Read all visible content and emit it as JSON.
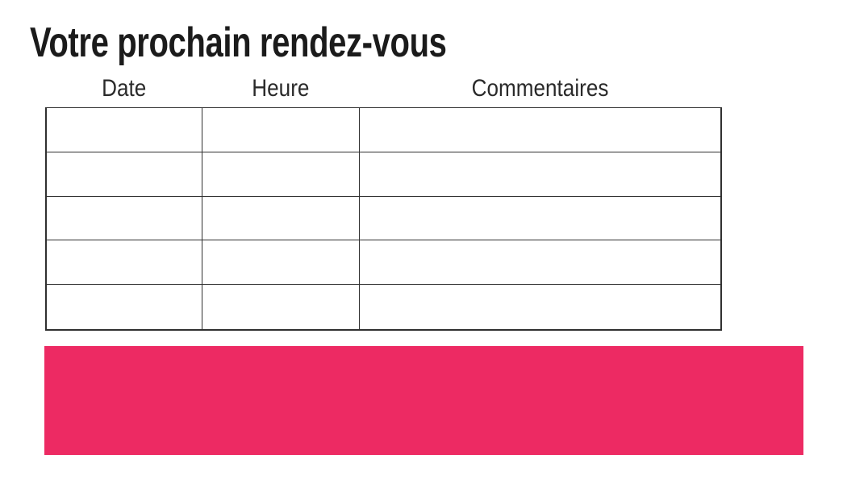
{
  "page": {
    "title": "Votre prochain rendez-vous"
  },
  "table": {
    "headers": [
      "Date",
      "Heure",
      "Commentaires"
    ],
    "rows": [
      [
        "",
        "",
        ""
      ],
      [
        "",
        "",
        ""
      ],
      [
        "",
        "",
        ""
      ],
      [
        "",
        "",
        ""
      ],
      [
        "",
        "",
        ""
      ]
    ]
  },
  "highlight": {
    "color": "#ED2A63"
  }
}
